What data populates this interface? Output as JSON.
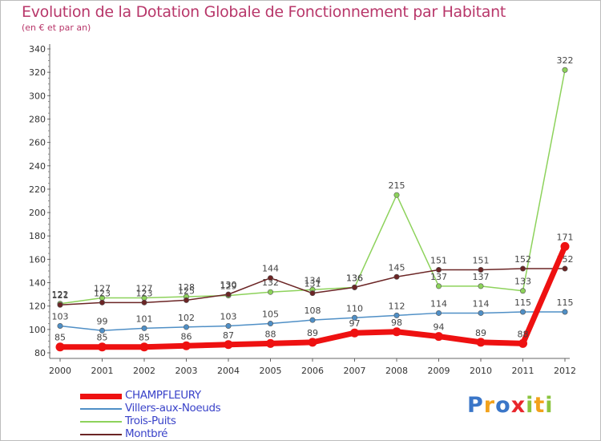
{
  "chart_data": {
    "type": "line",
    "title": "Evolution de la Dotation Globale de Fonctionnement par Habitant",
    "subtitle": "(en € et par an)",
    "xlabel": "",
    "ylabel": "",
    "x": [
      "2000",
      "2001",
      "2002",
      "2003",
      "2004",
      "2005",
      "2006",
      "2007",
      "2008",
      "2009",
      "2010",
      "2011",
      "2012"
    ],
    "ylim": [
      80,
      340
    ],
    "yticks": [
      "80",
      "100",
      "120",
      "140",
      "160",
      "180",
      "200",
      "220",
      "240",
      "260",
      "280",
      "300",
      "320",
      "340"
    ],
    "grid": false,
    "legend_position": "bottom-left",
    "series": [
      {
        "name": "Villers-aux-Noeuds",
        "color": "#4f8fc6",
        "values": [
          103,
          99,
          101,
          102,
          103,
          105,
          108,
          110,
          112,
          114,
          114,
          115,
          115
        ],
        "labels": [
          "103",
          "99",
          "101",
          "102",
          "103",
          "105",
          "108",
          "110",
          "112",
          "114",
          "114",
          "115",
          "115"
        ]
      },
      {
        "name": "Trois-Puits",
        "color": "#8dd25b",
        "values": [
          122,
          127,
          127,
          128,
          129,
          132,
          134,
          136,
          215,
          137,
          137,
          133,
          322
        ],
        "labels": [
          "122",
          "127",
          "127",
          "128",
          "129",
          "132",
          "134",
          "136",
          "215",
          "137",
          "137",
          "133",
          "322"
        ]
      },
      {
        "name": "Montbré",
        "color": "#6b2525",
        "values": [
          121,
          123,
          123,
          125,
          130,
          144,
          131,
          136,
          145,
          151,
          151,
          152,
          152
        ],
        "labels": [
          "121",
          "123",
          "123",
          "125",
          "130",
          "144",
          "131",
          "136",
          "145",
          "151",
          "151",
          "152",
          "152"
        ]
      },
      {
        "name": "CHAMPFLEURY",
        "color": "#ee1111",
        "values": [
          85,
          85,
          85,
          86,
          87,
          88,
          89,
          97,
          98,
          94,
          89,
          88,
          171
        ],
        "labels": [
          "85",
          "85",
          "85",
          "86",
          "87",
          "88",
          "89",
          "97",
          "98",
          "94",
          "89",
          "88",
          "171"
        ]
      }
    ]
  },
  "legend": {
    "items": [
      {
        "label": "CHAMPFLEURY",
        "color": "#ee1111",
        "thickness": 7
      },
      {
        "label": "Villers-aux-Noeuds",
        "color": "#4f8fc6",
        "thickness": 2
      },
      {
        "label": "Trois-Puits",
        "color": "#8dd25b",
        "thickness": 2
      },
      {
        "label": "Montbré",
        "color": "#6b2525",
        "thickness": 2
      }
    ]
  },
  "logo": {
    "text": "Proxiti",
    "letter_colors": [
      "#3a76c8",
      "#f2a21b",
      "#3a76c8",
      "#e8262c",
      "#8bc43f",
      "#f2a21b",
      "#8bc43f"
    ]
  }
}
